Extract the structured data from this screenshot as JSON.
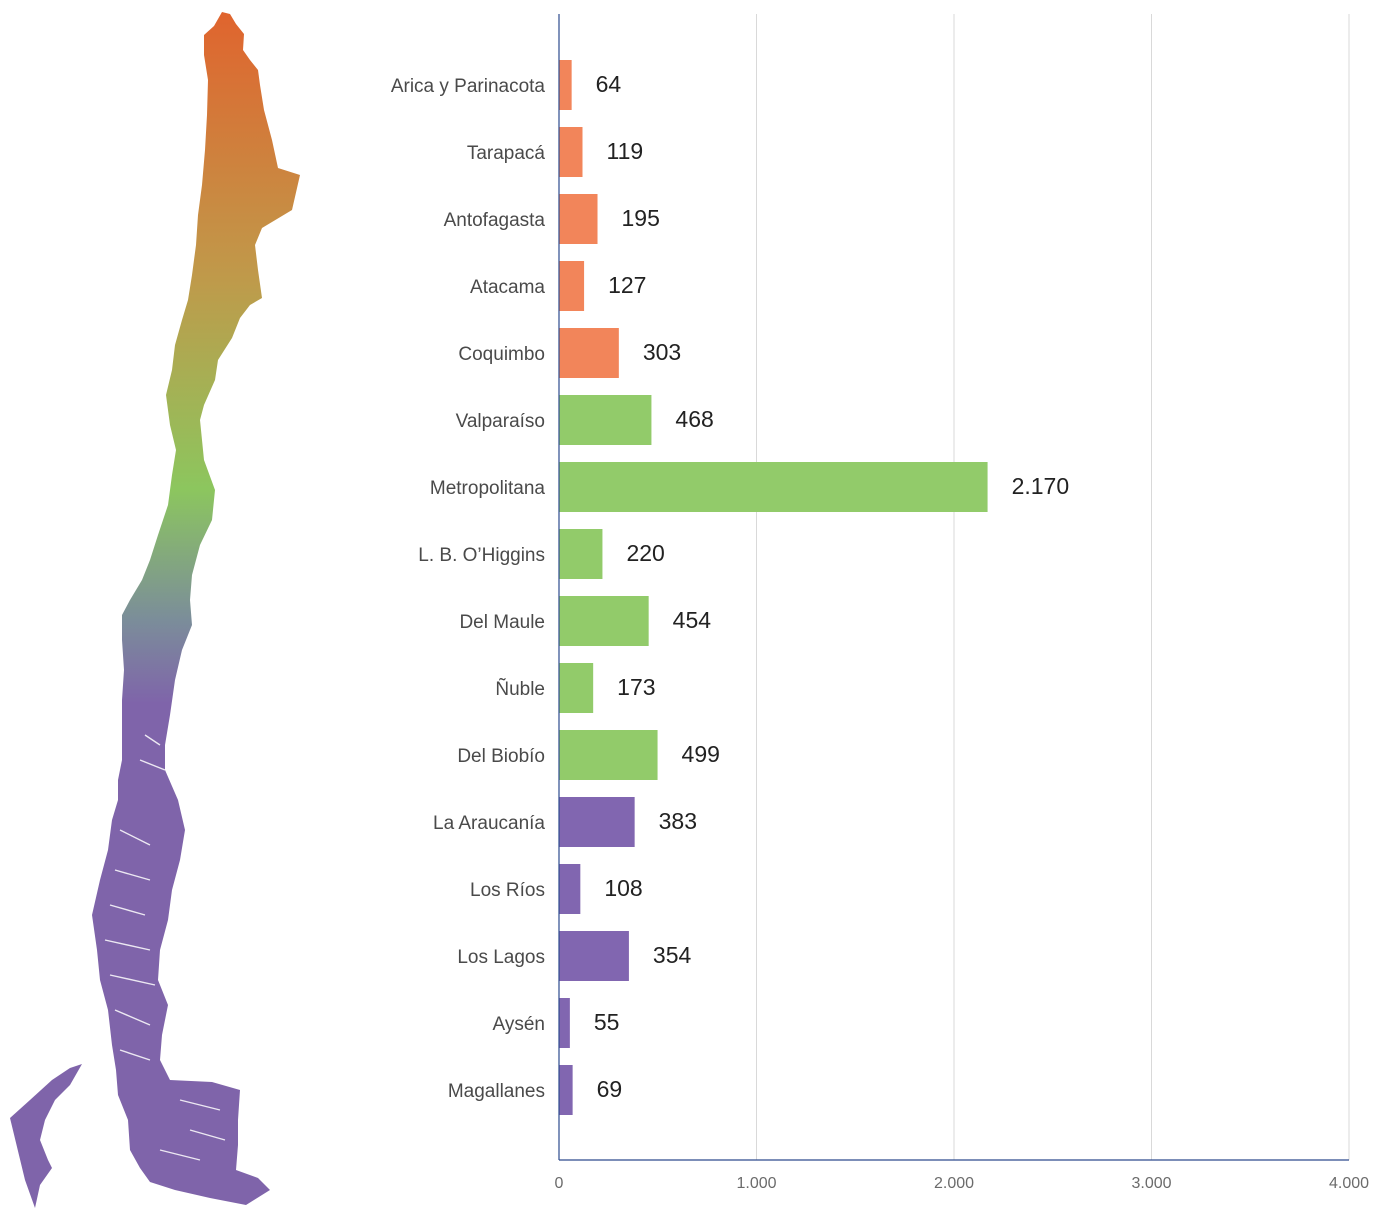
{
  "map": {
    "icon": "chile-map-icon",
    "gradient_colors": [
      "#e0642e",
      "#c0994a",
      "#8cc65e",
      "#7b8d9a",
      "#7f64aa"
    ]
  },
  "chart_data": {
    "type": "bar",
    "orientation": "horizontal",
    "categories": [
      "Arica y Parinacota",
      "Tarapacá",
      "Antofagasta",
      "Atacama",
      "Coquimbo",
      "Valparaíso",
      "Metropolitana",
      "L. B. O’Higgins",
      "Del Maule",
      "Ñuble",
      "Del Biobío",
      "La Araucanía",
      "Los Ríos",
      "Los Lagos",
      "Aysén",
      "Magallanes"
    ],
    "values": [
      64,
      119,
      195,
      127,
      303,
      468,
      2170,
      220,
      454,
      173,
      499,
      383,
      108,
      354,
      55,
      69
    ],
    "value_labels": [
      "64",
      "119",
      "195",
      "127",
      "303",
      "468",
      "2.170",
      "220",
      "454",
      "173",
      "499",
      "383",
      "108",
      "354",
      "55",
      "69"
    ],
    "bar_colors": [
      "#f2855a",
      "#f2855a",
      "#f2855a",
      "#f2855a",
      "#f2855a",
      "#92cb6a",
      "#92cb6a",
      "#92cb6a",
      "#92cb6a",
      "#92cb6a",
      "#92cb6a",
      "#8166b0",
      "#8166b0",
      "#8166b0",
      "#8166b0",
      "#8166b0"
    ],
    "xlim": [
      0,
      4000
    ],
    "xticks": [
      0,
      1000,
      2000,
      3000,
      4000
    ],
    "xtick_labels": [
      "0",
      "1.000",
      "2.000",
      "3.000",
      "4.000"
    ],
    "grid": "vertical",
    "axis_color": "#2d4b8e",
    "grid_color": "#d9d9d9"
  }
}
